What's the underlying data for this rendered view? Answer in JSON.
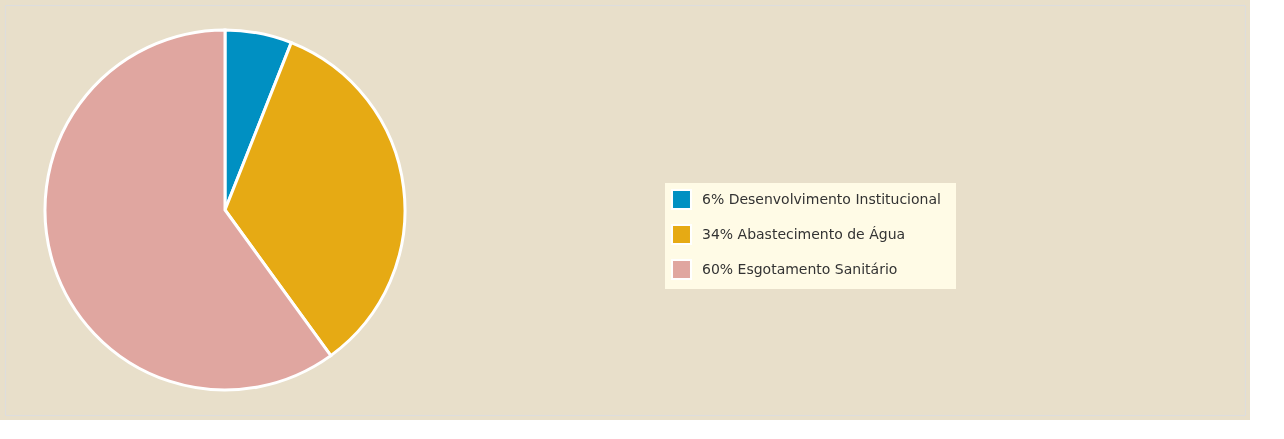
{
  "chart_data": {
    "type": "pie",
    "categories": [
      "Desenvolvimento Institucional",
      "Abastecimento de Água",
      "Esgotamento Sanitário"
    ],
    "values": [
      6,
      34,
      60
    ],
    "colors": [
      "#0090c2",
      "#e6aa14",
      "#e0a6a0"
    ],
    "value_labels": [
      "6%",
      "34%",
      "60%"
    ],
    "legend": "right"
  }
}
